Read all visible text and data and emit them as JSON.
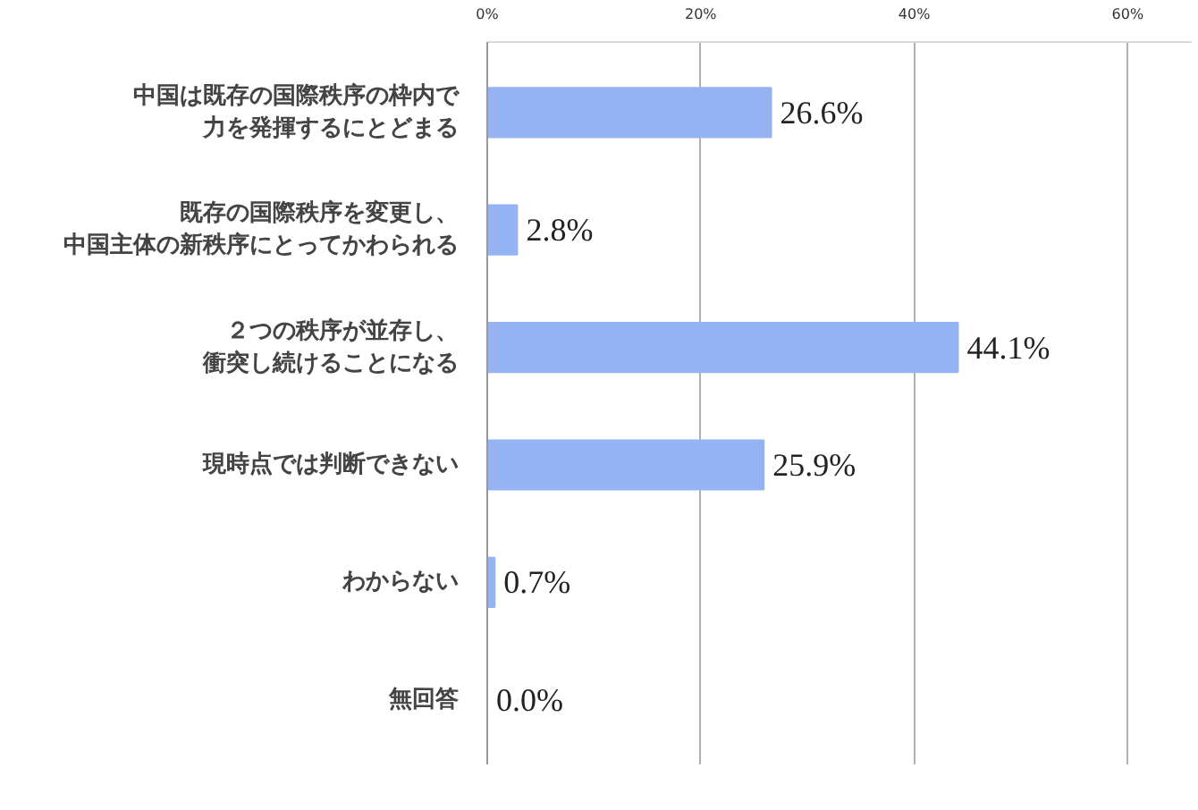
{
  "chart_data": {
    "type": "bar",
    "orientation": "horizontal",
    "categories": [
      "中国は既存の国際秩序の枠内で力を発揮するにとどまる",
      "既存の国際秩序を変更し、中国主体の新秩序にとってかわられる",
      "２つの秩序が並存し、衝突し続けることになる",
      "現時点では判断できない",
      "わからない",
      "無回答"
    ],
    "values": [
      26.6,
      2.8,
      44.1,
      25.9,
      0.7,
      0.0
    ],
    "value_labels": [
      "26.6%",
      "2.8%",
      "44.1%",
      "25.9%",
      "0.7%",
      "0.0%"
    ],
    "color": "#95b3f3",
    "xlim": [
      0,
      66
    ],
    "xticks": [
      {
        "value": 0,
        "label": "0%"
      },
      {
        "value": 20,
        "label": "20%"
      },
      {
        "value": 40,
        "label": "40%"
      },
      {
        "value": 60,
        "label": "60%"
      }
    ],
    "grid": "x",
    "legend": false
  }
}
